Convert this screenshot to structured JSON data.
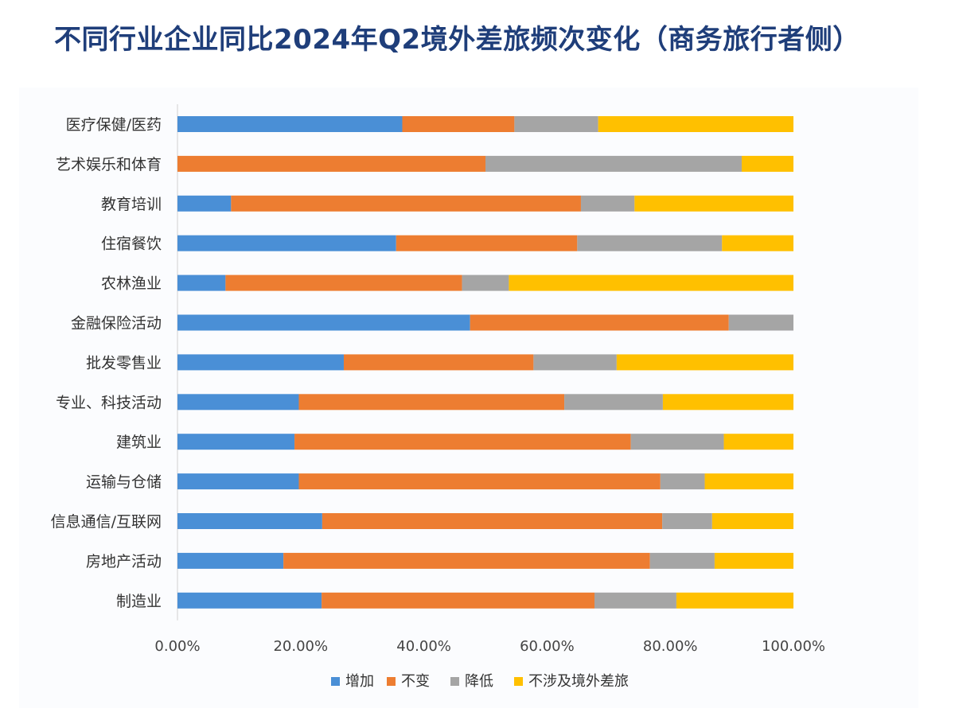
{
  "chart_data": {
    "type": "bar",
    "orientation": "horizontal",
    "stacked": true,
    "title": "不同行业企业同比2024年Q2境外差旅频次变化（商务旅行者侧）",
    "categories": [
      "医疗保健/医药",
      "艺术娱乐和体育",
      "教育培训",
      "住宿餐饮",
      "农林渔业",
      "金融保险活动",
      "批发零售业",
      "专业、科技活动",
      "建筑业",
      "运输与仓储",
      "信息通信/互联网",
      "房地产活动",
      "制造业"
    ],
    "series": [
      {
        "name": "增加",
        "color": "#4a8fd6",
        "values": [
          36.5,
          0,
          8.7,
          35.5,
          7.8,
          47.5,
          27.0,
          19.7,
          19.0,
          19.7,
          23.5,
          17.2,
          23.4
        ]
      },
      {
        "name": "不变",
        "color": "#ed7d31",
        "values": [
          18.2,
          50.0,
          56.8,
          29.4,
          38.4,
          42.0,
          30.8,
          43.1,
          54.6,
          58.7,
          55.2,
          59.5,
          44.3
        ]
      },
      {
        "name": "降低",
        "color": "#a5a5a5",
        "values": [
          13.6,
          41.6,
          8.7,
          23.5,
          7.6,
          10.5,
          13.5,
          16.0,
          15.1,
          7.2,
          8.1,
          10.5,
          13.3
        ]
      },
      {
        "name": "不涉及境外差旅",
        "color": "#ffc000",
        "values": [
          31.7,
          8.4,
          25.8,
          11.6,
          46.2,
          0,
          28.7,
          21.2,
          11.3,
          14.4,
          13.2,
          12.8,
          19.0
        ]
      }
    ],
    "xlim": [
      0,
      100
    ],
    "xticks": [
      "0.00%",
      "20.00%",
      "40.00%",
      "60.00%",
      "80.00%",
      "100.00%"
    ],
    "grid": false,
    "legend_position": "bottom"
  }
}
